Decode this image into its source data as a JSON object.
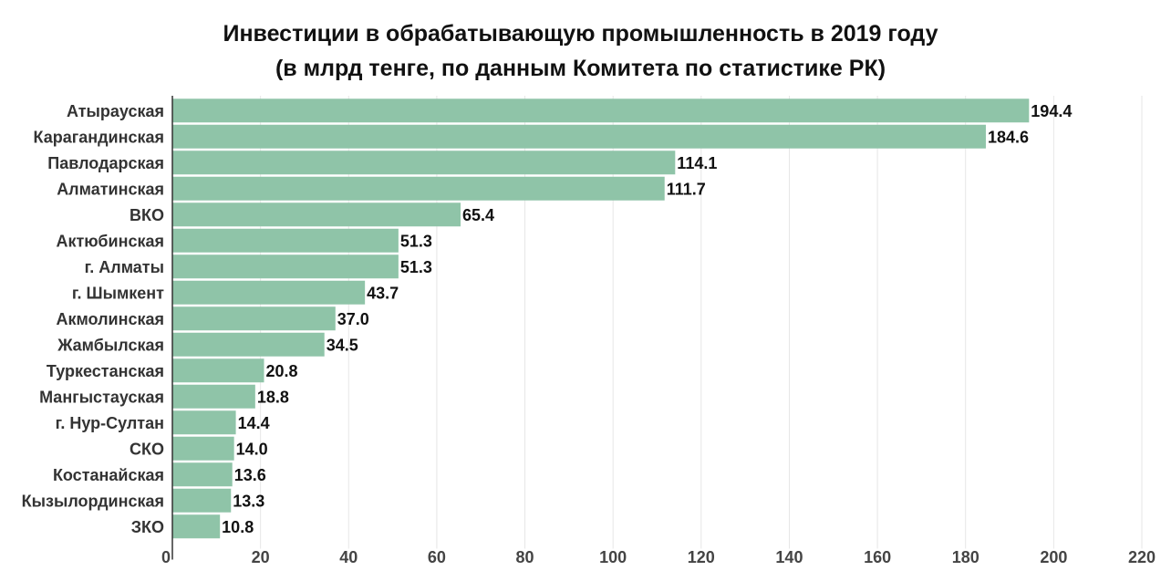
{
  "chart_data": {
    "type": "bar",
    "orientation": "horizontal",
    "title": "Инвестиции в обрабатывающую промышленность в 2019 году",
    "subtitle": "(в млрд тенге, по данным Комитета по статистике РК)",
    "categories": [
      "Атырауская",
      "Карагандинская",
      "Павлодарская",
      "Алматинская",
      "ВКО",
      "Актюбинская",
      "г. Алматы",
      "г. Шымкент",
      "Акмолинская",
      "Жамбылская",
      "Туркестанская",
      "Мангыстауская",
      "г. Нур-Султан",
      "СКО",
      "Костанайская",
      "Кызылординская",
      "ЗКО"
    ],
    "values": [
      194.4,
      184.6,
      114.1,
      111.7,
      65.4,
      51.3,
      51.3,
      43.7,
      37.0,
      34.5,
      20.8,
      18.8,
      14.4,
      14.0,
      13.6,
      13.3,
      10.8
    ],
    "value_labels": [
      "194.4",
      "184.6",
      "114.1",
      "111.7",
      "65.4",
      "51.3",
      "51.3",
      "43.7",
      "37.0",
      "34.5",
      "20.8",
      "18.8",
      "14.4",
      "14.0",
      "13.6",
      "13.3",
      "10.8"
    ],
    "xlim": [
      0,
      220
    ],
    "xticks": [
      "0",
      "20",
      "40",
      "60",
      "80",
      "100",
      "120",
      "140",
      "160",
      "180",
      "200",
      "220"
    ],
    "grid": "vertical",
    "legend": "none",
    "bar_color": "#8fc4a8",
    "grid_color": "#e6e6e6",
    "axis_color": "#333333"
  }
}
